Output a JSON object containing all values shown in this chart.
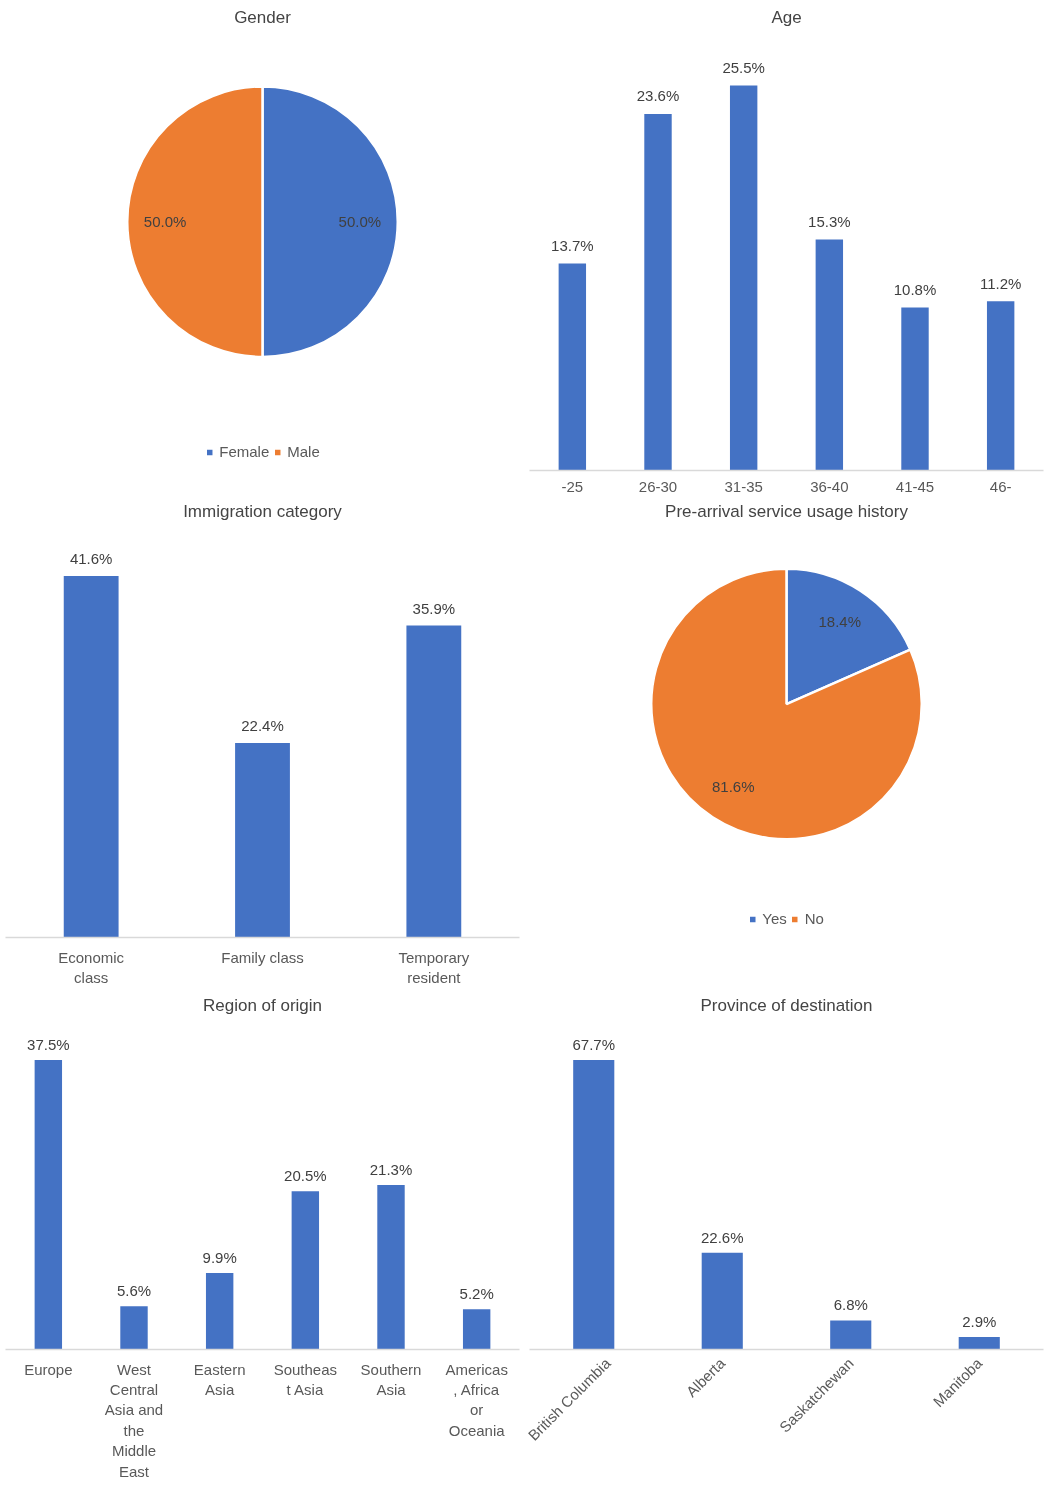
{
  "chart_data": [
    {
      "type": "pie",
      "title": "Gender",
      "categories": [
        "Female",
        "Male"
      ],
      "values": [
        50.0,
        50.0
      ],
      "colors": [
        "#4472c4",
        "#ed7d31"
      ],
      "value_labels": [
        "50.0%",
        "50.0%"
      ],
      "legend": "bottom"
    },
    {
      "type": "bar",
      "title": "Age",
      "categories": [
        "-25",
        "26-30",
        "31-35",
        "36-40",
        "41-45",
        "46-"
      ],
      "values": [
        13.7,
        23.6,
        25.5,
        15.3,
        10.8,
        11.2
      ],
      "color": "#4472c4",
      "value_labels": [
        "13.7%",
        "23.6%",
        "25.5%",
        "15.3%",
        "10.8%",
        "11.2%"
      ]
    },
    {
      "type": "bar",
      "title": "Immigration category",
      "categories": [
        "Economic class",
        "Family class",
        "Temporary resident"
      ],
      "values": [
        41.6,
        22.4,
        35.9
      ],
      "color": "#4472c4",
      "value_labels": [
        "41.6%",
        "22.4%",
        "35.9%"
      ]
    },
    {
      "type": "pie",
      "title": "Pre-arrival service usage history",
      "categories": [
        "Yes",
        "No"
      ],
      "values": [
        18.4,
        81.6
      ],
      "colors": [
        "#4472c4",
        "#ed7d31"
      ],
      "value_labels": [
        "18.4%",
        "81.6%"
      ],
      "legend": "bottom"
    },
    {
      "type": "bar",
      "title": "Region of origin",
      "categories": [
        "Europe",
        "West Central Asia and the Middle East",
        "Eastern Asia",
        "Southeast Asia",
        "Southern Asia",
        "Americas, Africa or Oceania"
      ],
      "values": [
        37.5,
        5.6,
        9.9,
        20.5,
        21.3,
        5.2
      ],
      "color": "#4472c4",
      "value_labels": [
        "37.5%",
        "5.6%",
        "9.9%",
        "20.5%",
        "21.3%",
        "5.2%"
      ]
    },
    {
      "type": "bar",
      "title": "Province of destination",
      "categories": [
        "British Columbia",
        "Alberta",
        "Saskatchewan",
        "Manitoba"
      ],
      "values": [
        67.7,
        22.6,
        6.8,
        2.9
      ],
      "color": "#4472c4",
      "value_labels": [
        "67.7%",
        "22.6%",
        "6.8%",
        "2.9%"
      ]
    }
  ]
}
